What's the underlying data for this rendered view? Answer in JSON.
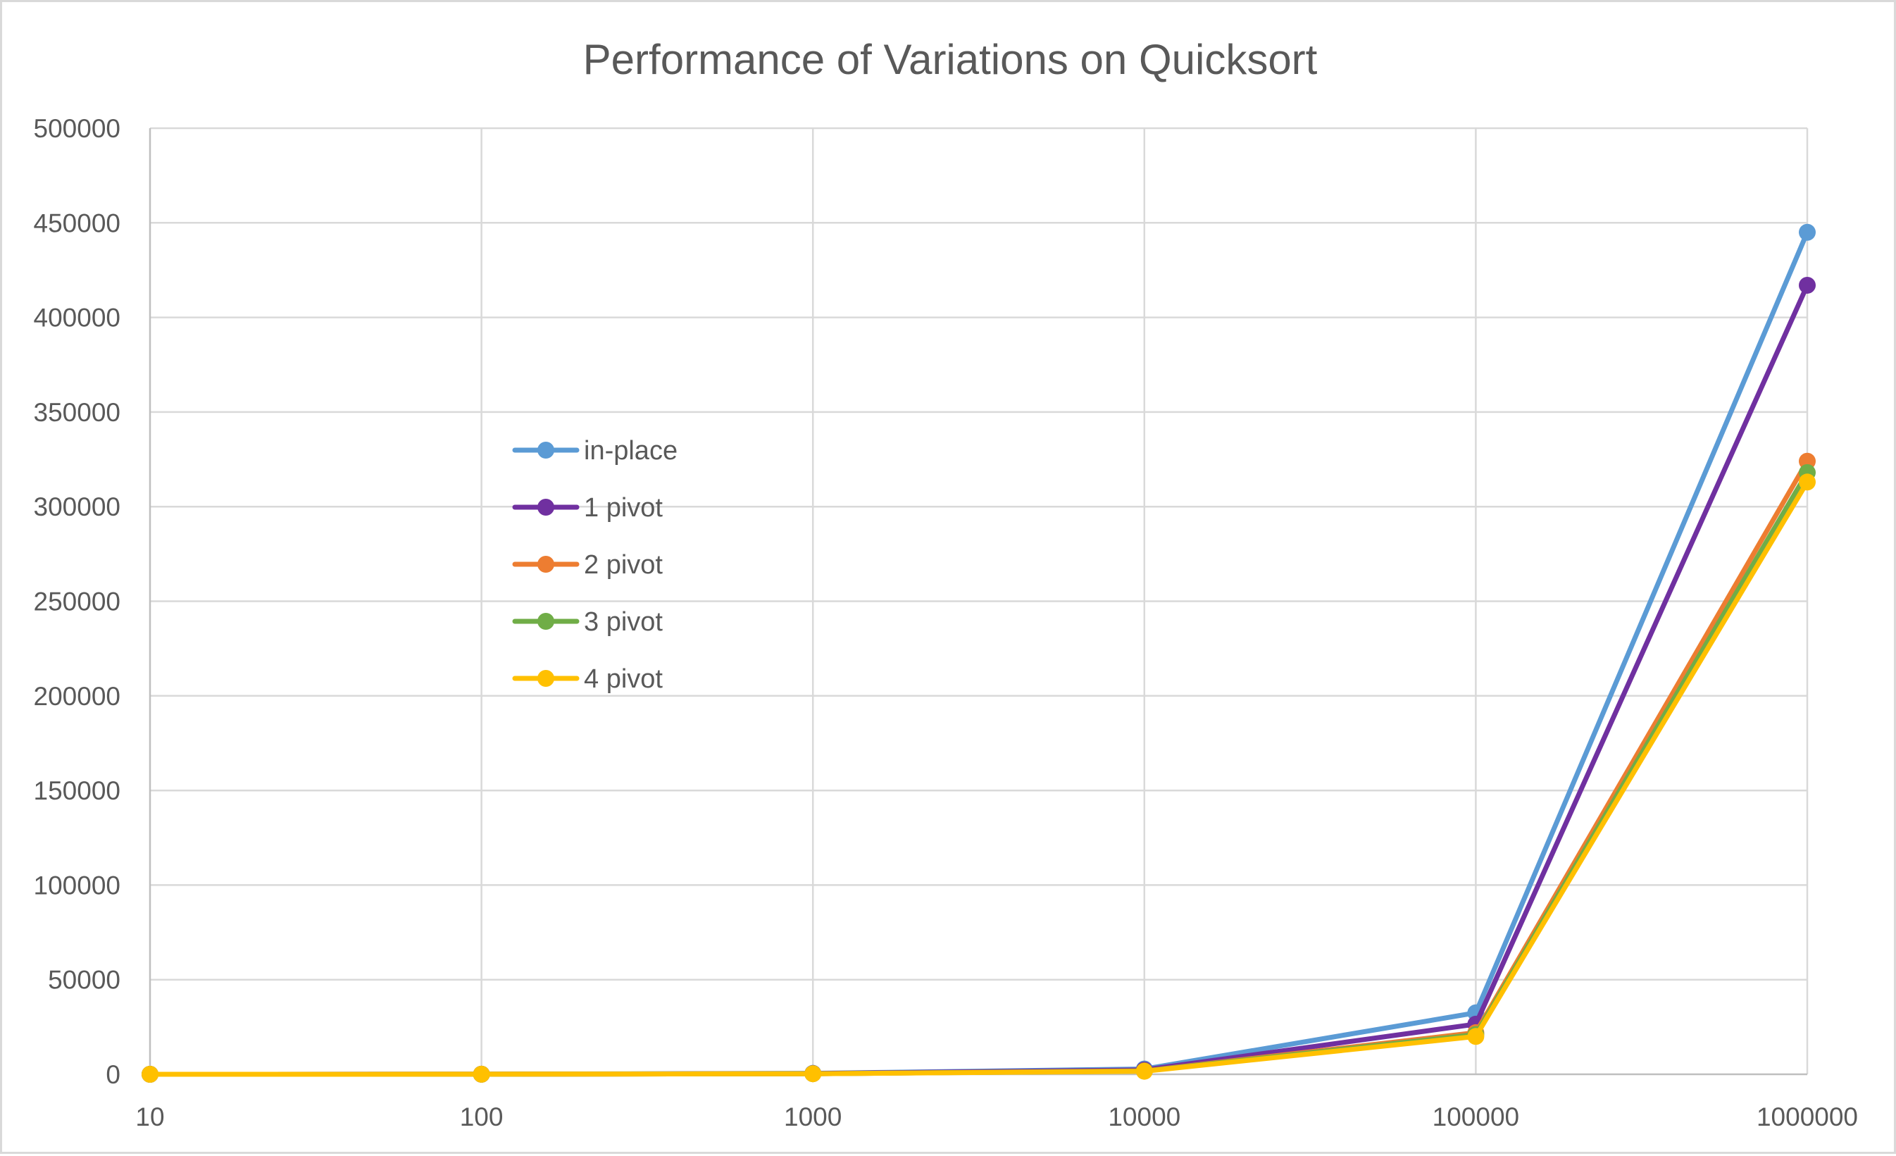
{
  "chart_data": {
    "type": "line",
    "title": "Performance of Variations on Quicksort",
    "xlabel": "",
    "ylabel": "",
    "x": [
      "10",
      "100",
      "1000",
      "10000",
      "100000",
      "1000000"
    ],
    "ylim": [
      0,
      500000
    ],
    "yticks": [
      "0",
      "50000",
      "100000",
      "150000",
      "200000",
      "250000",
      "300000",
      "350000",
      "400000",
      "450000",
      "500000"
    ],
    "grid": true,
    "legend_position": "middle-left",
    "series": [
      {
        "name": "in-place",
        "color": "#5b9bd5",
        "values": [
          0,
          50,
          500,
          2800,
          32500,
          445000
        ]
      },
      {
        "name": "1 pivot",
        "color": "#7030a0",
        "values": [
          0,
          40,
          400,
          2300,
          26500,
          417000
        ]
      },
      {
        "name": "2 pivot",
        "color": "#ed7d31",
        "values": [
          0,
          30,
          300,
          1800,
          22000,
          324000
        ]
      },
      {
        "name": "3 pivot",
        "color": "#70ad47",
        "values": [
          0,
          30,
          300,
          1700,
          21000,
          318000
        ]
      },
      {
        "name": "4 pivot",
        "color": "#ffc000",
        "values": [
          0,
          30,
          300,
          1600,
          20000,
          313000
        ]
      }
    ]
  }
}
